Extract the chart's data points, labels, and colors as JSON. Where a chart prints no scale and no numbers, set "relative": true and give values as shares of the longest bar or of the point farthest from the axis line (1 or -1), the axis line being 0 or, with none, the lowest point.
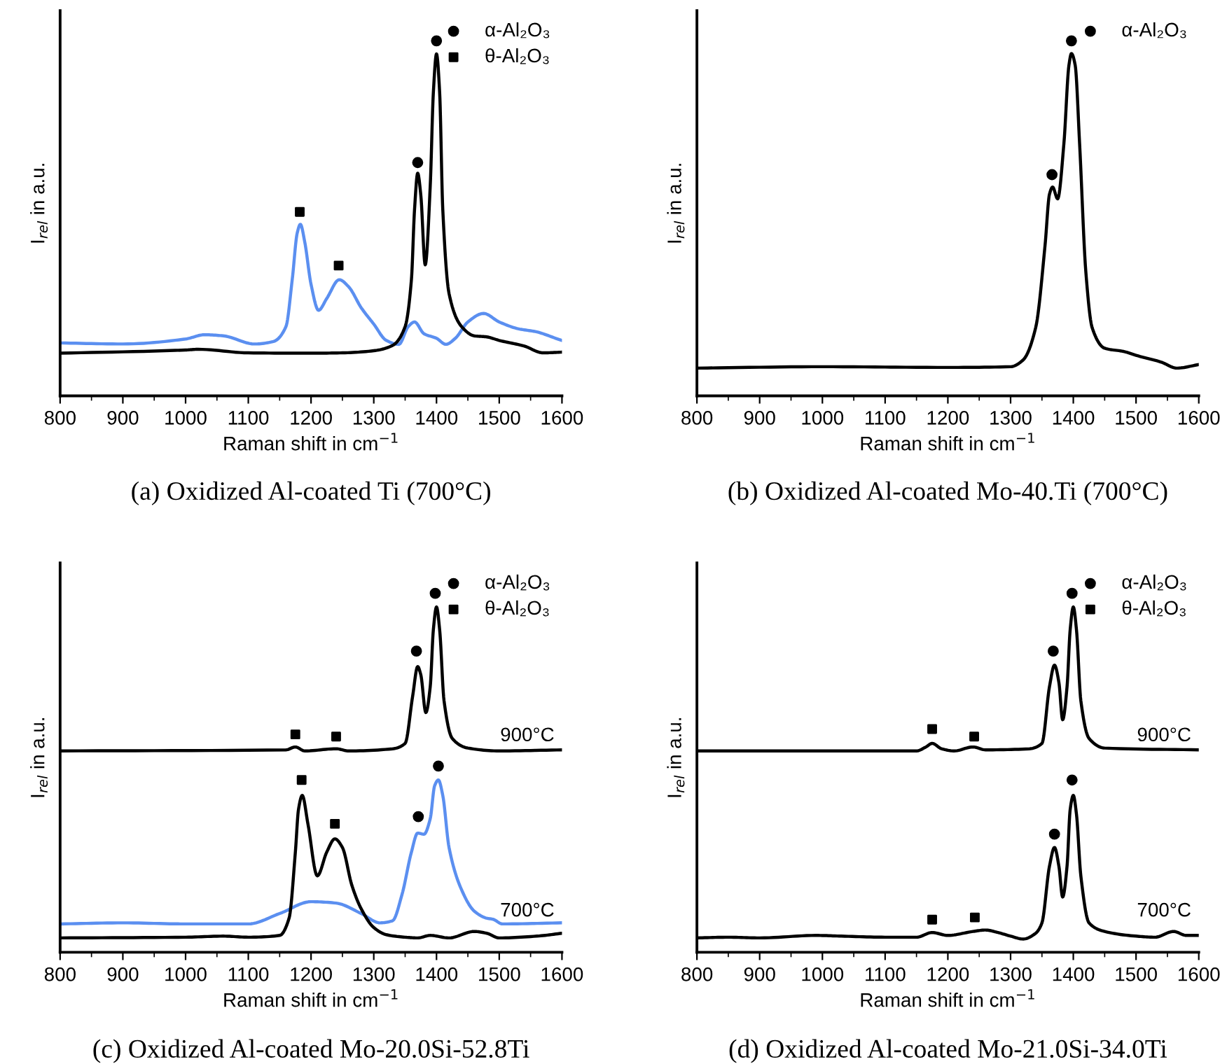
{
  "chart_data": [
    {
      "type": "line",
      "title": "(a) Oxidized Al-coated Ti (700°C)",
      "xlabel": "Raman shift in cm$^{−1}$",
      "ylabel": "I$_{rel}$ in a.u.",
      "relative": true,
      "xlim": [
        800,
        1600
      ],
      "xticks": [
        800,
        {
          "value": 850,
          "label": null
        },
        900,
        {
          "value": 950,
          "label": null
        },
        1000,
        {
          "value": 1050,
          "label": null
        },
        1100,
        {
          "value": 1150,
          "label": null
        },
        1200,
        {
          "value": 1250,
          "label": null
        },
        1300,
        {
          "value": 1350,
          "label": null
        },
        1400,
        {
          "value": 1450,
          "label": null
        },
        1500,
        {
          "value": 1550,
          "label": null
        },
        1600
      ],
      "legend": "top right",
      "grid": false,
      "series": [
        {
          "color": "#5b8ff0",
          "x": [
            800,
            900,
            1000,
            1030,
            1060,
            1110,
            1140,
            1160,
            1170,
            1178,
            1183,
            1190,
            1200,
            1212,
            1225,
            1245,
            1260,
            1280,
            1300,
            1320,
            1340,
            1355,
            1365,
            1380,
            1400,
            1415,
            1430,
            1450,
            1475,
            1500,
            1530,
            1560,
            1590,
            1600
          ],
          "values": [
            0.149,
            0.146,
            0.16,
            0.172,
            0.169,
            0.146,
            0.153,
            0.195,
            0.327,
            0.459,
            0.483,
            0.433,
            0.314,
            0.241,
            0.274,
            0.327,
            0.307,
            0.248,
            0.202,
            0.156,
            0.145,
            0.195,
            0.208,
            0.175,
            0.162,
            0.145,
            0.162,
            0.208,
            0.232,
            0.208,
            0.189,
            0.18,
            0.162,
            0.156
          ]
        },
        {
          "color": "#000000",
          "x": [
            800,
            1000,
            1020,
            1100,
            1200,
            1250,
            1300,
            1330,
            1350,
            1360,
            1365,
            1370,
            1375,
            1382,
            1390,
            1395,
            1400,
            1405,
            1410,
            1420,
            1440,
            1460,
            1480,
            1500,
            1540,
            1570,
            1600
          ],
          "values": [
            0.12,
            0.129,
            0.131,
            0.121,
            0.12,
            0.121,
            0.127,
            0.142,
            0.195,
            0.327,
            0.525,
            0.627,
            0.565,
            0.369,
            0.591,
            0.855,
            0.963,
            0.855,
            0.525,
            0.288,
            0.195,
            0.169,
            0.166,
            0.156,
            0.14,
            0.121,
            0.123
          ]
        },
        {
          "type": "scatter",
          "name": "α-Al₂O₃",
          "color": "#000000",
          "marker": "circle",
          "x": [
            1370,
            1400
          ],
          "values": [
            0.657,
            1.0
          ]
        },
        {
          "type": "scatter",
          "name": "θ-Al₂O₃",
          "color": "#000000",
          "marker": "square",
          "x": [
            1182,
            1244
          ],
          "values": [
            0.518,
            0.367
          ]
        }
      ]
    },
    {
      "type": "line",
      "title": "(b) Oxidized Al-coated Mo-40.Ti (700°C)",
      "xlabel": "Raman shift in cm$^{−1}$",
      "ylabel": "I$_{rel}$ in a.u.",
      "relative": true,
      "xlim": [
        800,
        1600
      ],
      "xticks": [
        800,
        {
          "value": 850,
          "label": null
        },
        900,
        {
          "value": 950,
          "label": null
        },
        1000,
        {
          "value": 1050,
          "label": null
        },
        1100,
        {
          "value": 1150,
          "label": null
        },
        1200,
        {
          "value": 1250,
          "label": null
        },
        1300,
        {
          "value": 1350,
          "label": null
        },
        1400,
        {
          "value": 1450,
          "label": null
        },
        1500,
        {
          "value": 1550,
          "label": null
        },
        1600
      ],
      "legend": "top right",
      "grid": false,
      "series": [
        {
          "color": "#000000",
          "x": [
            800,
            1000,
            1200,
            1300,
            1320,
            1340,
            1355,
            1362,
            1367,
            1375,
            1385,
            1393,
            1397,
            1403,
            1410,
            1420,
            1430,
            1450,
            1480,
            1500,
            1540,
            1565,
            1600
          ],
          "values": [
            0.078,
            0.082,
            0.08,
            0.082,
            0.101,
            0.192,
            0.425,
            0.568,
            0.588,
            0.555,
            0.711,
            0.931,
            0.964,
            0.931,
            0.711,
            0.348,
            0.192,
            0.134,
            0.125,
            0.114,
            0.095,
            0.078,
            0.088
          ]
        },
        {
          "type": "scatter",
          "name": "α-Al₂O₃",
          "color": "#000000",
          "marker": "circle",
          "x": [
            1366,
            1397
          ],
          "values": [
            0.623,
            1.0
          ]
        }
      ]
    },
    {
      "type": "line",
      "title": "(c) Oxidized Al-coated Mo-20.0Si-52.8Ti",
      "xlabel": "Raman shift in cm$^{−1}$",
      "ylabel": "I$_{rel}$ in a.u.",
      "relative": true,
      "xlim": [
        800,
        1600
      ],
      "xticks": [
        800,
        {
          "value": 850,
          "label": null
        },
        900,
        {
          "value": 950,
          "label": null
        },
        1000,
        {
          "value": 1050,
          "label": null
        },
        1100,
        {
          "value": 1150,
          "label": null
        },
        1200,
        {
          "value": 1250,
          "label": null
        },
        1300,
        {
          "value": 1350,
          "label": null
        },
        1400,
        {
          "value": 1450,
          "label": null
        },
        1500,
        {
          "value": 1550,
          "label": null
        },
        1600
      ],
      "legend": "top right",
      "grid": false,
      "annotations": [
        "900°C",
        "700°C"
      ],
      "series": [
        {
          "color": "#000000",
          "x": [
            800,
            1160,
            1175,
            1190,
            1240,
            1260,
            1330,
            1350,
            1362,
            1370,
            1375,
            1383,
            1390,
            1395,
            1400,
            1405,
            1412,
            1425,
            1450,
            1500,
            1600
          ],
          "values": [
            0.561,
            0.564,
            0.572,
            0.561,
            0.567,
            0.561,
            0.567,
            0.582,
            0.714,
            0.796,
            0.773,
            0.668,
            0.74,
            0.899,
            0.962,
            0.899,
            0.701,
            0.596,
            0.569,
            0.561,
            0.564
          ]
        },
        {
          "color": "#5b8ff0",
          "x": [
            800,
            900,
            1000,
            1100,
            1150,
            1200,
            1240,
            1280,
            1310,
            1330,
            1345,
            1360,
            1370,
            1380,
            1390,
            1397,
            1403,
            1410,
            1420,
            1440,
            1460,
            1480,
            1490,
            1505,
            1600
          ],
          "values": [
            0.079,
            0.082,
            0.079,
            0.079,
            0.108,
            0.141,
            0.137,
            0.108,
            0.082,
            0.088,
            0.161,
            0.279,
            0.332,
            0.329,
            0.372,
            0.464,
            0.48,
            0.437,
            0.292,
            0.174,
            0.115,
            0.095,
            0.092,
            0.079,
            0.082
          ]
        },
        {
          "color": "#000000",
          "x": [
            800,
            1000,
            1060,
            1100,
            1150,
            1165,
            1175,
            1180,
            1186,
            1195,
            1210,
            1225,
            1238,
            1250,
            1265,
            1280,
            1300,
            1320,
            1350,
            1370,
            1390,
            1420,
            1460,
            1480,
            1500,
            1560,
            1600
          ],
          "values": [
            0.04,
            0.042,
            0.045,
            0.042,
            0.047,
            0.095,
            0.279,
            0.398,
            0.437,
            0.358,
            0.213,
            0.279,
            0.316,
            0.292,
            0.187,
            0.121,
            0.069,
            0.049,
            0.042,
            0.04,
            0.047,
            0.04,
            0.058,
            0.053,
            0.04,
            0.045,
            0.053
          ]
        },
        {
          "type": "scatter",
          "name": "α-Al₂O₃",
          "color": "#000000",
          "marker": "circle",
          "x": [
            1368,
            1398,
            1371,
            1403
          ],
          "values": [
            0.839,
            1.0,
            0.378,
            0.519
          ]
        },
        {
          "type": "scatter",
          "name": "θ-Al₂O₃",
          "color": "#000000",
          "marker": "square",
          "x": [
            1175,
            1240,
            1185,
            1238
          ],
          "values": [
            0.607,
            0.601,
            0.48,
            0.358
          ]
        }
      ]
    },
    {
      "type": "line",
      "title": "(d) Oxidized Al-coated Mo-21.0Si-34.0Ti",
      "xlabel": "Raman shift in cm$^{−1}$",
      "ylabel": "I$_{rel}$ in a.u.",
      "relative": true,
      "xlim": [
        800,
        1600
      ],
      "xticks": [
        800,
        {
          "value": 850,
          "label": null
        },
        900,
        {
          "value": 950,
          "label": null
        },
        1000,
        {
          "value": 1050,
          "label": null
        },
        1100,
        {
          "value": 1150,
          "label": null
        },
        1200,
        {
          "value": 1250,
          "label": null
        },
        1300,
        {
          "value": 1350,
          "label": null
        },
        1400,
        {
          "value": 1450,
          "label": null
        },
        1500,
        {
          "value": 1550,
          "label": null
        },
        1600
      ],
      "legend": "top right",
      "grid": false,
      "annotations": [
        "900°C",
        "700°C"
      ],
      "series": [
        {
          "color": "#000000",
          "x": [
            800,
            1150,
            1165,
            1175,
            1190,
            1210,
            1240,
            1260,
            1330,
            1350,
            1362,
            1370,
            1377,
            1383,
            1390,
            1395,
            1400,
            1405,
            1412,
            1425,
            1450,
            1600
          ],
          "values": [
            0.561,
            0.561,
            0.572,
            0.582,
            0.567,
            0.561,
            0.572,
            0.564,
            0.567,
            0.582,
            0.74,
            0.8,
            0.752,
            0.648,
            0.74,
            0.899,
            0.962,
            0.899,
            0.701,
            0.596,
            0.569,
            0.564
          ]
        },
        {
          "color": "#000000",
          "x": [
            800,
            850,
            900,
            990,
            1030,
            1100,
            1150,
            1175,
            1200,
            1240,
            1260,
            1280,
            1300,
            1320,
            1340,
            1350,
            1362,
            1370,
            1377,
            1383,
            1390,
            1395,
            1400,
            1405,
            1412,
            1425,
            1450,
            1500,
            1530,
            1560,
            1580,
            1600
          ],
          "values": [
            0.04,
            0.042,
            0.04,
            0.047,
            0.045,
            0.042,
            0.042,
            0.055,
            0.047,
            0.058,
            0.062,
            0.055,
            0.045,
            0.037,
            0.053,
            0.082,
            0.24,
            0.292,
            0.24,
            0.154,
            0.24,
            0.398,
            0.437,
            0.385,
            0.213,
            0.082,
            0.058,
            0.045,
            0.042,
            0.058,
            0.047,
            0.047
          ]
        },
        {
          "type": "scatter",
          "name": "α-Al₂O₃",
          "color": "#000000",
          "marker": "circle",
          "x": [
            1368,
            1398,
            1370,
            1398
          ],
          "values": [
            0.839,
            1.0,
            0.329,
            0.48
          ]
        },
        {
          "type": "scatter",
          "name": "θ-Al₂O₃",
          "color": "#000000",
          "marker": "square",
          "x": [
            1175,
            1242,
            1175,
            1243
          ],
          "values": [
            0.622,
            0.601,
            0.091,
            0.097
          ]
        }
      ]
    }
  ]
}
